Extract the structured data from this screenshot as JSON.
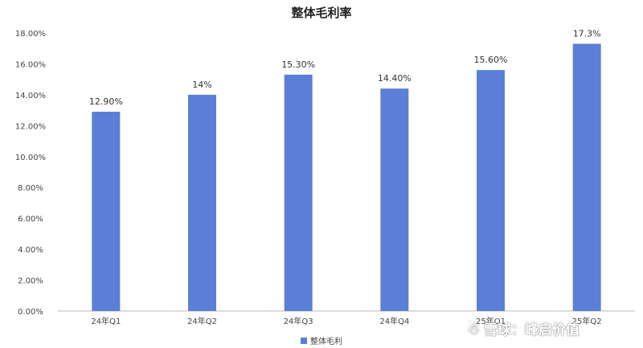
{
  "chart_data": {
    "type": "bar",
    "title": "整体毛利率",
    "categories": [
      "24年Q1",
      "24年Q2",
      "24年Q3",
      "24年Q4",
      "25年Q1",
      "25年Q2"
    ],
    "series": [
      {
        "name": "整体毛利",
        "values": [
          12.9,
          14.0,
          15.3,
          14.4,
          15.6,
          17.3
        ],
        "data_labels": [
          "12.90%",
          "14%",
          "15.30%",
          "14.40%",
          "15.60%",
          "17.3%"
        ]
      }
    ],
    "ylim": [
      0,
      18
    ],
    "yticks": [
      "0.00%",
      "2.00%",
      "4.00%",
      "6.00%",
      "8.00%",
      "10.00%",
      "12.00%",
      "14.00%",
      "16.00%",
      "18.00%"
    ],
    "grid": false,
    "legend_position": "bottom",
    "colors": {
      "bar": "#5b7fd6",
      "axis": "#bbbbbb"
    }
  },
  "watermark": "雪球：峰启价值"
}
